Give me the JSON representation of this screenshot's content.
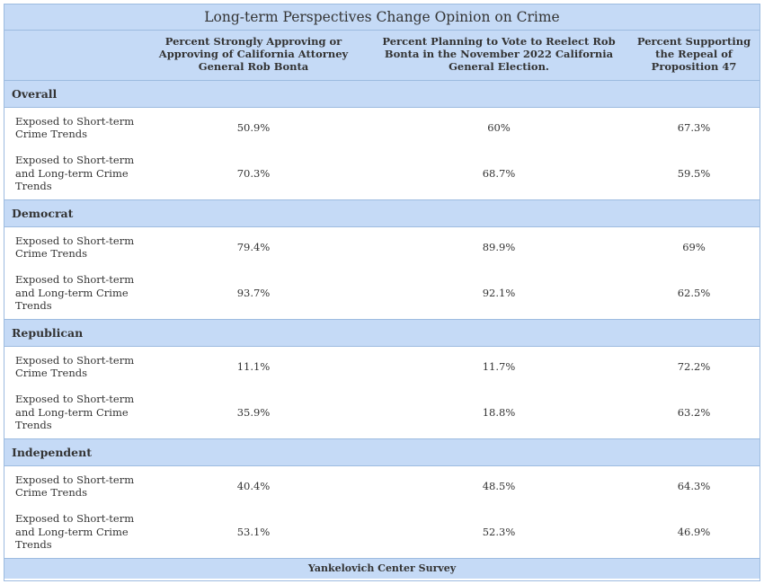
{
  "chart_data": {
    "type": "table",
    "title": "Long-term Perspectives Change Opinion on Crime",
    "columns": [
      "Percent Strongly Approving or Approving of  California Attorney General Rob Bonta",
      "Percent Planning to Vote to Reelect Rob Bonta in the November 2022 California General Election.",
      "Percent Supporting the Repeal of  Proposition 47"
    ],
    "groups": [
      {
        "name": "Overall",
        "rows": [
          {
            "label": "Exposed to Short-term Crime Trends",
            "values": [
              "50.9%",
              "60%",
              "67.3%"
            ]
          },
          {
            "label": "Exposed to Short-term and Long-term Crime Trends",
            "values": [
              "70.3%",
              "68.7%",
              "59.5%"
            ]
          }
        ]
      },
      {
        "name": "Democrat",
        "rows": [
          {
            "label": "Exposed to Short-term Crime Trends",
            "values": [
              "79.4%",
              "89.9%",
              "69%"
            ]
          },
          {
            "label": "Exposed to Short-term and Long-term Crime Trends",
            "values": [
              "93.7%",
              "92.1%",
              "62.5%"
            ]
          }
        ]
      },
      {
        "name": "Republican",
        "rows": [
          {
            "label": "Exposed to Short-term Crime Trends",
            "values": [
              "11.1%",
              "11.7%",
              "72.2%"
            ]
          },
          {
            "label": "Exposed to Short-term and Long-term Crime Trends",
            "values": [
              "35.9%",
              "18.8%",
              "63.2%"
            ]
          }
        ]
      },
      {
        "name": "Independent",
        "rows": [
          {
            "label": "Exposed to Short-term Crime Trends",
            "values": [
              "40.4%",
              "48.5%",
              "64.3%"
            ]
          },
          {
            "label": "Exposed to Short-term and Long-term Crime Trends",
            "values": [
              "53.1%",
              "52.3%",
              "46.9%"
            ]
          }
        ]
      }
    ],
    "footer": "Yankelovich Center Survey"
  }
}
